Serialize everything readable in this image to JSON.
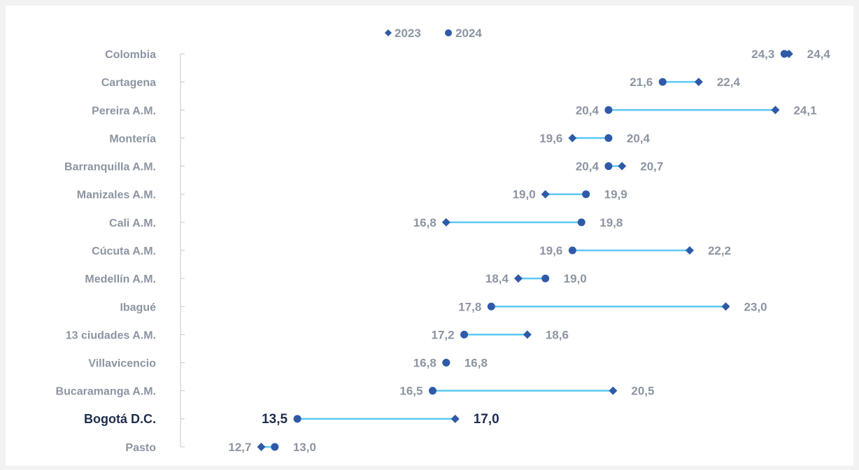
{
  "chart_data": {
    "type": "dumbbell",
    "title": "",
    "xlabel": "",
    "ylabel": "",
    "legend": {
      "placement": "top-center"
    },
    "grid": false,
    "xlim": [
      11.0,
      24.9
    ],
    "series": [
      {
        "name": "2023",
        "marker": "diamond",
        "color": "#2e5aa8"
      },
      {
        "name": "2024",
        "marker": "circle",
        "color": "#2e5aa8"
      }
    ],
    "connector_color": "#5cc8f5",
    "highlight_category": "Bogotá D.C.",
    "categories": [
      "Colombia",
      "Cartagena",
      "Pereira A.M.",
      "Montería",
      "Barranquilla A.M.",
      "Manizales A.M.",
      "Cali A.M.",
      "Cúcuta A.M.",
      "Medellín A.M.",
      "Ibagué",
      "13 ciudades A.M.",
      "Villavicencio",
      "Bucaramanga A.M.",
      "Bogotá D.C.",
      "Pasto"
    ],
    "values_2023": [
      24.4,
      22.4,
      24.1,
      19.6,
      20.7,
      19.0,
      16.8,
      22.2,
      18.4,
      23.0,
      18.6,
      16.8,
      20.5,
      17.0,
      12.7
    ],
    "values_2024": [
      24.3,
      21.6,
      20.4,
      20.4,
      20.4,
      19.9,
      19.8,
      19.6,
      19.0,
      17.8,
      17.2,
      16.8,
      16.5,
      13.5,
      13.0
    ],
    "labels_2023": [
      "24,4",
      "22,4",
      "24,1",
      "19,6",
      "20,7",
      "19,0",
      "16,8",
      "22,2",
      "18,4",
      "23,0",
      "18,6",
      "16,8",
      "20,5",
      "17,0",
      "12,7"
    ],
    "labels_2024": [
      "24,3",
      "21,6",
      "20,4",
      "20,4",
      "20,4",
      "19,9",
      "19,8",
      "19,6",
      "19,0",
      "17,8",
      "17,2",
      "16,8",
      "16,5",
      "13,5",
      "13,0"
    ]
  }
}
